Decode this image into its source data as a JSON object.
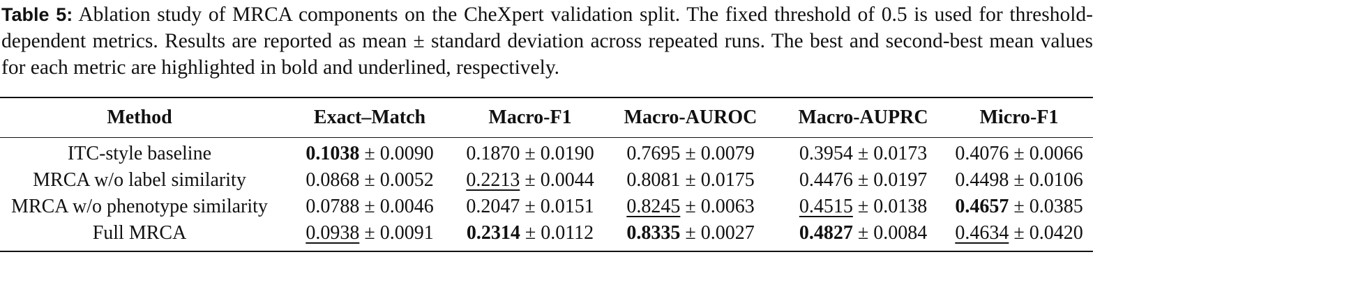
{
  "caption": {
    "label": "Table 5:",
    "text": "Ablation study of MRCA components on the CheXpert validation split. The fixed threshold of 0.5 is used for threshold-dependent metrics. Results are reported as mean ± standard deviation across repeated runs. The best and second-best mean values for each metric are highlighted in bold and underlined, respectively."
  },
  "table": {
    "pm": "±",
    "header": [
      "Method",
      "Exact–Match",
      "Macro-F1",
      "Macro-AUROC",
      "Macro-AUPRC",
      "Micro-F1"
    ],
    "rows": [
      {
        "method": "ITC-style baseline",
        "cells": [
          {
            "mean": "0.1038",
            "sd": "0.0090",
            "emphasis": "bold"
          },
          {
            "mean": "0.1870",
            "sd": "0.0190"
          },
          {
            "mean": "0.7695",
            "sd": "0.0079"
          },
          {
            "mean": "0.3954",
            "sd": "0.0173"
          },
          {
            "mean": "0.4076",
            "sd": "0.0066"
          }
        ]
      },
      {
        "method": "MRCA w/o label similarity",
        "cells": [
          {
            "mean": "0.0868",
            "sd": "0.0052"
          },
          {
            "mean": "0.2213",
            "sd": "0.0044",
            "emphasis": "underline"
          },
          {
            "mean": "0.8081",
            "sd": "0.0175"
          },
          {
            "mean": "0.4476",
            "sd": "0.0197"
          },
          {
            "mean": "0.4498",
            "sd": "0.0106"
          }
        ]
      },
      {
        "method": "MRCA w/o phenotype similarity",
        "cells": [
          {
            "mean": "0.0788",
            "sd": "0.0046"
          },
          {
            "mean": "0.2047",
            "sd": "0.0151"
          },
          {
            "mean": "0.8245",
            "sd": "0.0063",
            "emphasis": "underline"
          },
          {
            "mean": "0.4515",
            "sd": "0.0138",
            "emphasis": "underline"
          },
          {
            "mean": "0.4657",
            "sd": "0.0385",
            "emphasis": "bold"
          }
        ]
      },
      {
        "method": "Full MRCA",
        "cells": [
          {
            "mean": "0.0938",
            "sd": "0.0091",
            "emphasis": "underline"
          },
          {
            "mean": "0.2314",
            "sd": "0.0112",
            "emphasis": "bold"
          },
          {
            "mean": "0.8335",
            "sd": "0.0027",
            "emphasis": "bold"
          },
          {
            "mean": "0.4827",
            "sd": "0.0084",
            "emphasis": "bold"
          },
          {
            "mean": "0.4634",
            "sd": "0.0420",
            "emphasis": "underline"
          }
        ]
      }
    ]
  }
}
